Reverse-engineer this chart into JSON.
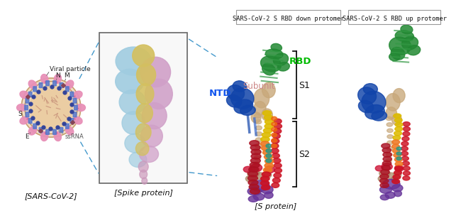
{
  "bg_color": "#ffffff",
  "fig_width": 8.05,
  "fig_height": 3.83,
  "labels": {
    "sars_cov2": "[SARS-CoV-2]",
    "spike_protein": "[Spike protein]",
    "s_protein": "[S protein]",
    "viral_particle": "Viral particle",
    "n": "N",
    "m": "M",
    "s": "S",
    "e": "E",
    "ssrna": "ssRNA",
    "rbd": "RBD",
    "ntd": "NTD",
    "subunit": "Subunit",
    "s1": "S1",
    "s2": "S2",
    "box1": "SARS-CoV-2 S RBD down protomer",
    "box2": "SARS-CoV-2 S RBD up protomer"
  },
  "colors": {
    "rbd_label": "#00bb00",
    "ntd_label": "#1155ee",
    "subunit_label": "#cc8888",
    "dashed_line": "#4499cc",
    "viral_inner": "#f0d5a8",
    "viral_outer_fill": "#f0c8d0",
    "viral_membrane": "#c07080",
    "spike_color": "#e890b8",
    "n_dot": "#334499",
    "m_rect": "#5577cc",
    "ssrna_color": "#994444",
    "box_border": "#888888",
    "bracket": "#111111",
    "label_text": "#111111",
    "green_rbd": "#228833",
    "blue_ntd": "#1144aa",
    "tan_subunit": "#c8a87a",
    "yellow_helix": "#ddbb00",
    "orange_helix": "#ee7722",
    "red_helix": "#cc1122",
    "purple_bottom": "#663399",
    "teal_region": "#229988",
    "mauve_region": "#aa88aa",
    "spike_light_blue": "#a0cce0",
    "spike_pink": "#d0a0c8",
    "spike_yellow": "#d4c060"
  }
}
